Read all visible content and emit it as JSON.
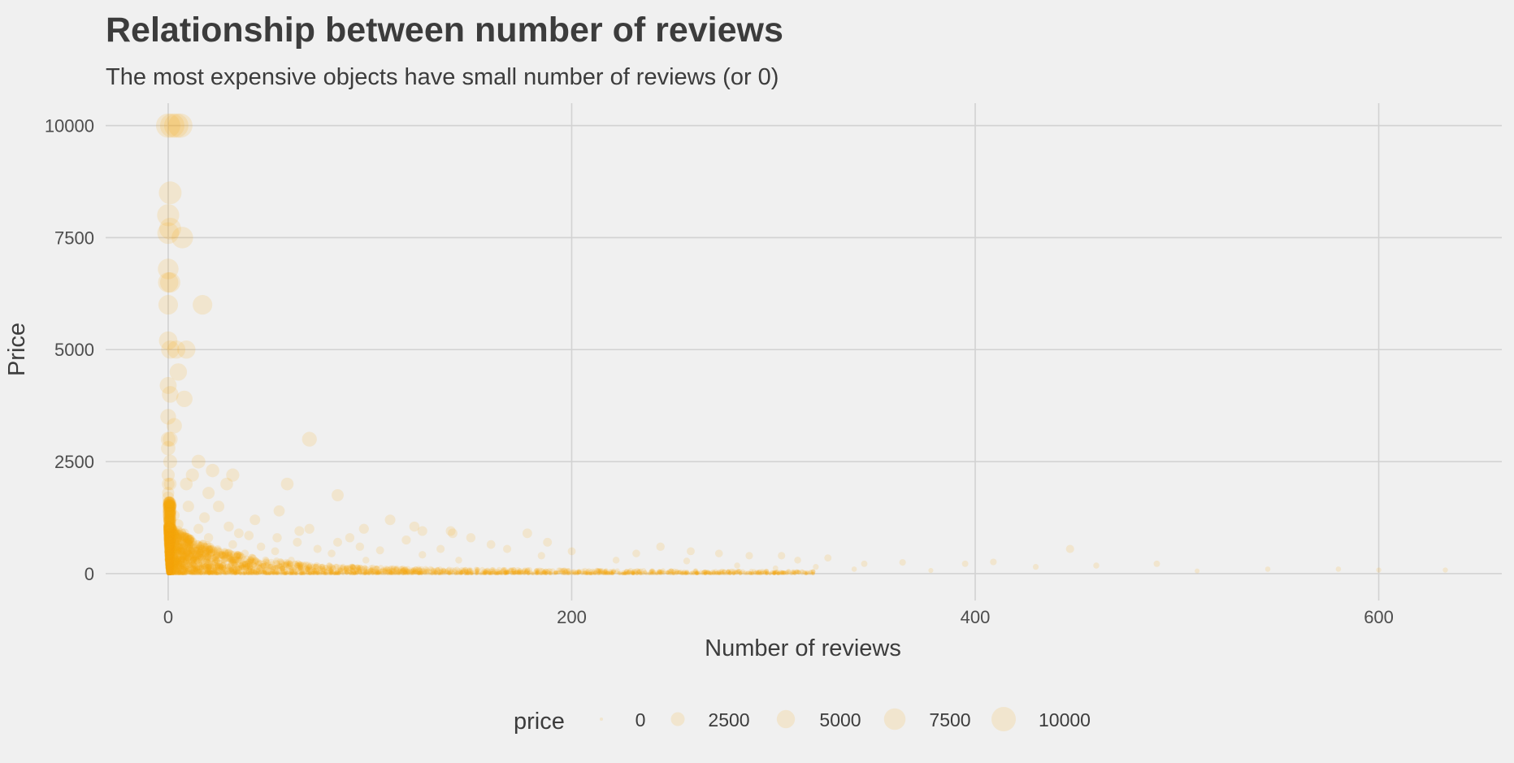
{
  "chart_data": {
    "type": "scatter",
    "title": "Relationship between number of reviews",
    "subtitle": "The most expensive objects have small number of reviews (or 0)",
    "xlabel": "Number of reviews",
    "ylabel": "Price",
    "xlim": [
      -31,
      661
    ],
    "ylim": [
      -600,
      10500
    ],
    "x_ticks": [
      0,
      200,
      400,
      600
    ],
    "y_ticks": [
      0,
      2500,
      5000,
      7500,
      10000
    ],
    "grid": true,
    "point_color": "#f5a90f",
    "point_alpha": 0.15,
    "size_aesthetic": "price",
    "legend": {
      "title": "price",
      "position": "bottom",
      "entries": [
        0,
        2500,
        5000,
        7500,
        10000
      ]
    },
    "points": [
      [
        0,
        10000
      ],
      [
        2,
        10000
      ],
      [
        4,
        10000
      ],
      [
        6,
        10000
      ],
      [
        1,
        8500
      ],
      [
        0,
        8000
      ],
      [
        1,
        7700
      ],
      [
        0,
        7600
      ],
      [
        7,
        7500
      ],
      [
        0,
        6800
      ],
      [
        0,
        6500
      ],
      [
        1,
        6500
      ],
      [
        0,
        6000
      ],
      [
        17,
        6000
      ],
      [
        0,
        5200
      ],
      [
        1,
        5000
      ],
      [
        4,
        5000
      ],
      [
        9,
        5000
      ],
      [
        5,
        4500
      ],
      [
        0,
        4200
      ],
      [
        1,
        4000
      ],
      [
        8,
        3900
      ],
      [
        0,
        3500
      ],
      [
        3,
        3300
      ],
      [
        0,
        3000
      ],
      [
        1,
        3000
      ],
      [
        70,
        3000
      ],
      [
        0,
        2800
      ],
      [
        1,
        2500
      ],
      [
        15,
        2500
      ],
      [
        22,
        2300
      ],
      [
        0,
        2200
      ],
      [
        12,
        2200
      ],
      [
        32,
        2200
      ],
      [
        0,
        2000
      ],
      [
        1,
        2000
      ],
      [
        9,
        2000
      ],
      [
        29,
        2000
      ],
      [
        59,
        2000
      ],
      [
        0,
        1800
      ],
      [
        20,
        1800
      ],
      [
        84,
        1750
      ],
      [
        0,
        1700
      ],
      [
        0,
        1500
      ],
      [
        1,
        1500
      ],
      [
        10,
        1500
      ],
      [
        25,
        1500
      ],
      [
        55,
        1400
      ],
      [
        0,
        1300
      ],
      [
        3,
        1300
      ],
      [
        18,
        1250
      ],
      [
        43,
        1200
      ],
      [
        110,
        1200
      ],
      [
        0,
        1100
      ],
      [
        5,
        1100
      ],
      [
        30,
        1050
      ],
      [
        122,
        1050
      ],
      [
        0,
        1000
      ],
      [
        2,
        1000
      ],
      [
        15,
        1000
      ],
      [
        70,
        1000
      ],
      [
        97,
        1000
      ],
      [
        126,
        950
      ],
      [
        141,
        900
      ],
      [
        65,
        950
      ],
      [
        35,
        900
      ],
      [
        0,
        900
      ],
      [
        8,
        900
      ],
      [
        140,
        950
      ],
      [
        40,
        850
      ],
      [
        90,
        800
      ],
      [
        54,
        800
      ],
      [
        20,
        800
      ],
      [
        150,
        800
      ],
      [
        0,
        800
      ],
      [
        3,
        750
      ],
      [
        178,
        900
      ],
      [
        118,
        750
      ],
      [
        64,
        700
      ],
      [
        84,
        700
      ],
      [
        188,
        700
      ],
      [
        0,
        700
      ],
      [
        12,
        700
      ],
      [
        32,
        650
      ],
      [
        160,
        650
      ],
      [
        244,
        600
      ],
      [
        3,
        600
      ],
      [
        46,
        600
      ],
      [
        95,
        600
      ],
      [
        135,
        550
      ],
      [
        0,
        600
      ],
      [
        22,
        550
      ],
      [
        74,
        550
      ],
      [
        168,
        550
      ],
      [
        105,
        520
      ],
      [
        259,
        500
      ],
      [
        0,
        500
      ],
      [
        10,
        500
      ],
      [
        53,
        500
      ],
      [
        200,
        500
      ],
      [
        38,
        450
      ],
      [
        0,
        400
      ],
      [
        16,
        400
      ],
      [
        81,
        450
      ],
      [
        126,
        420
      ],
      [
        232,
        450
      ],
      [
        273,
        450
      ],
      [
        288,
        400
      ],
      [
        304,
        400
      ],
      [
        327,
        350
      ],
      [
        447,
        550
      ],
      [
        185,
        400
      ],
      [
        0,
        300
      ],
      [
        2,
        300
      ],
      [
        9,
        300
      ],
      [
        30,
        350
      ],
      [
        61,
        300
      ],
      [
        98,
        300
      ],
      [
        144,
        300
      ],
      [
        222,
        300
      ],
      [
        312,
        300
      ],
      [
        257,
        280
      ],
      [
        345,
        220
      ],
      [
        364,
        250
      ],
      [
        395,
        220
      ],
      [
        409,
        260
      ],
      [
        430,
        150
      ],
      [
        460,
        180
      ],
      [
        490,
        220
      ],
      [
        545,
        100
      ],
      [
        580,
        100
      ],
      [
        600,
        80
      ],
      [
        633,
        80
      ],
      [
        510,
        60
      ],
      [
        378,
        70
      ],
      [
        340,
        100
      ],
      [
        321,
        150
      ],
      [
        301,
        120
      ],
      [
        282,
        180
      ]
    ]
  }
}
